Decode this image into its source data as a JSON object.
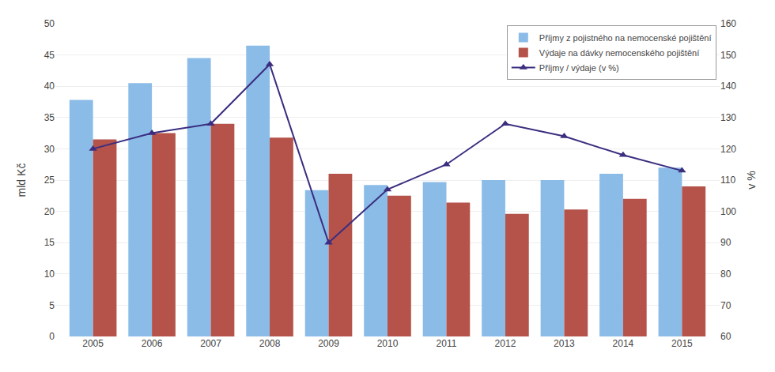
{
  "chart_data": {
    "type": "bar",
    "categories": [
      "2005",
      "2006",
      "2007",
      "2008",
      "2009",
      "2010",
      "2011",
      "2012",
      "2013",
      "2014",
      "2015"
    ],
    "series": [
      {
        "name": "Příjmy z pojistného na nemocenské pojištění",
        "color": "#8BBCE8",
        "values": [
          37.8,
          40.5,
          44.5,
          46.5,
          23.4,
          24.2,
          24.7,
          25.0,
          25.0,
          26.0,
          27.0
        ]
      },
      {
        "name": "Výdaje na dávky nemocenského pojištění",
        "color": "#B5534A",
        "values": [
          31.5,
          32.5,
          34.0,
          31.8,
          26.0,
          22.5,
          21.4,
          19.6,
          20.3,
          22.0,
          24.0
        ]
      },
      {
        "name": "Příjmy / výdaje (v %)",
        "type": "line",
        "axis": "y2",
        "color": "#3B2D7F",
        "marker": "triangle",
        "values": [
          120,
          125,
          128,
          147,
          90,
          107,
          115,
          128,
          124,
          118,
          113
        ]
      }
    ],
    "ylabel": "mld Kč",
    "y2label": "v %",
    "ylim": [
      0,
      50
    ],
    "yticks": [
      0,
      5,
      10,
      15,
      20,
      25,
      30,
      35,
      40,
      45,
      50
    ],
    "y2lim": [
      60,
      160
    ],
    "y2ticks": [
      60,
      70,
      80,
      90,
      100,
      110,
      120,
      130,
      140,
      150,
      160
    ],
    "grid": true,
    "legend": "upper right"
  }
}
